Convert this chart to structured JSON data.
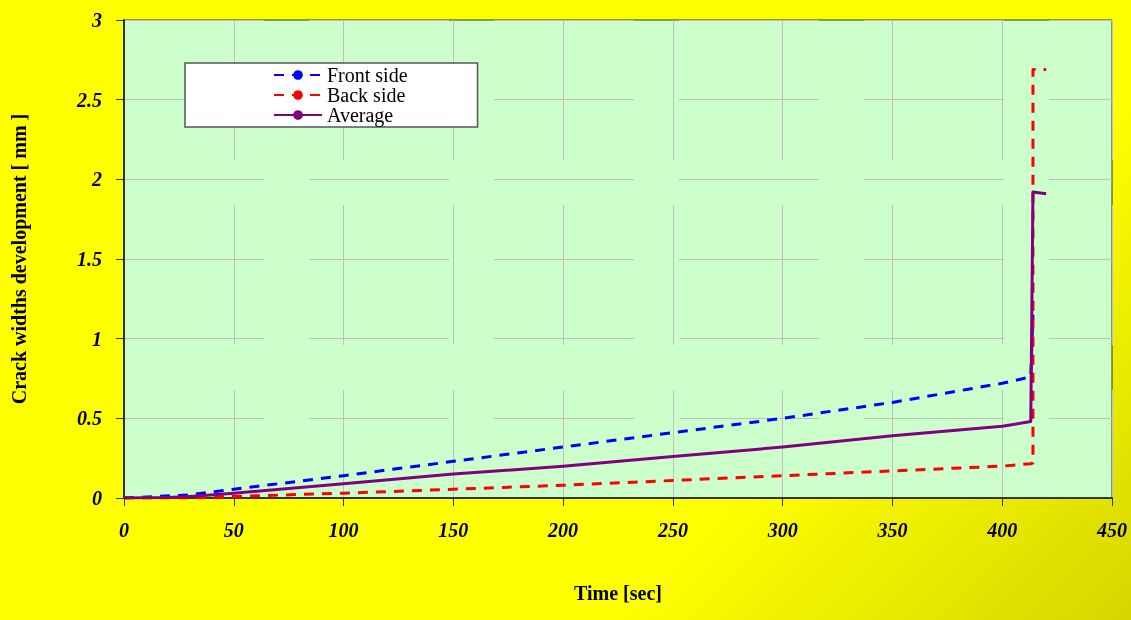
{
  "chart_data": {
    "type": "line",
    "xlabel": "Time [sec]",
    "ylabel": "Crack widths development [ mm ]",
    "xlim": [
      0,
      450
    ],
    "xticks": [
      0,
      50,
      100,
      150,
      200,
      250,
      300,
      350,
      400,
      450
    ],
    "ylim": [
      0,
      3
    ],
    "yticks": [
      0,
      0.5,
      1,
      1.5,
      2,
      2.5,
      3
    ],
    "grid": true,
    "legend": "top left",
    "marker": "none",
    "series": [
      {
        "name": "Front side",
        "color": "#0000ff",
        "line_style": "dashed",
        "x": [
          0,
          30,
          50,
          100,
          150,
          200,
          250,
          300,
          350,
          400,
          413,
          414
        ],
        "values": [
          0,
          0.02,
          0.055,
          0.14,
          0.23,
          0.32,
          0.41,
          0.5,
          0.6,
          0.72,
          0.76,
          1.15
        ]
      },
      {
        "name": "Back side",
        "color": "#ff0000",
        "line_style": "dashed",
        "x": [
          0,
          30,
          50,
          100,
          150,
          200,
          250,
          300,
          350,
          400,
          413,
          414,
          414,
          420
        ],
        "values": [
          0,
          0,
          0.01,
          0.03,
          0.055,
          0.08,
          0.11,
          0.14,
          0.17,
          0.2,
          0.215,
          0.22,
          2.69,
          2.69
        ]
      },
      {
        "name": "Average",
        "color": "#800080",
        "line_style": "solid",
        "x": [
          0,
          20,
          30,
          50,
          100,
          150,
          200,
          250,
          300,
          350,
          400,
          413,
          414,
          420
        ],
        "values": [
          0,
          0.003,
          0.01,
          0.03,
          0.09,
          0.15,
          0.2,
          0.26,
          0.32,
          0.39,
          0.45,
          0.48,
          1.92,
          1.91
        ]
      }
    ]
  }
}
